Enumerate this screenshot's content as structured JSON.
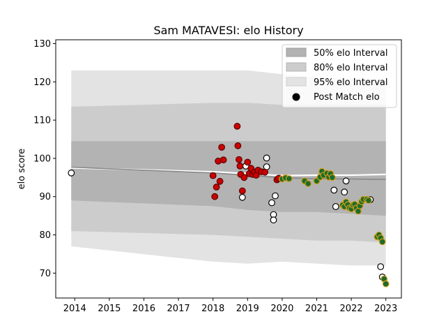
{
  "chart_data": {
    "type": "scatter",
    "title": "Sam MATAVESI: elo History",
    "xlabel": "",
    "ylabel": "elo score",
    "xlim": [
      2013.45,
      2023.45
    ],
    "ylim": [
      63.5,
      131
    ],
    "x_ticks": [
      "2014",
      "2015",
      "2016",
      "2017",
      "2018",
      "2019",
      "2020",
      "2021",
      "2022",
      "2023"
    ],
    "y_ticks": [
      "70",
      "80",
      "90",
      "100",
      "110",
      "120",
      "130"
    ],
    "grid": false,
    "legend_position": "top-right",
    "legend": [
      {
        "label": "50% elo Interval",
        "kind": "patch",
        "color": "#b3b3b3"
      },
      {
        "label": "80% elo Interval",
        "kind": "patch",
        "color": "#cccccc"
      },
      {
        "label": "95% elo Interval",
        "kind": "patch",
        "color": "#e3e3e3"
      },
      {
        "label": "Post Match elo",
        "kind": "marker",
        "color": "#000000"
      }
    ],
    "colors": {
      "band95": "#e3e3e3",
      "band80": "#cccccc",
      "band50": "#b3b3b3",
      "mean_line": "#ffffff",
      "median_line": "#888888",
      "red_fill": "#cc0000",
      "red_edge": "#5a0000",
      "green_fill": "#1f6b2a",
      "green_edge": "#d4a017",
      "white_fill": "#ffffff",
      "white_edge": "#000000"
    },
    "bands": {
      "x": [
        2013.9,
        2018.0,
        2019.0,
        2020.0,
        2021.0,
        2022.0,
        2023.0
      ],
      "p95": [
        [
          77.0,
          123.0
        ],
        [
          73.0,
          123.0
        ],
        [
          72.5,
          123.0
        ],
        [
          73.0,
          122.0
        ],
        [
          72.5,
          121.0
        ],
        [
          72.0,
          121.0
        ],
        [
          72.0,
          120.5
        ]
      ],
      "p80": [
        [
          81.0,
          113.5
        ],
        [
          80.0,
          114.5
        ],
        [
          79.5,
          114.5
        ],
        [
          79.0,
          114.0
        ],
        [
          78.5,
          114.0
        ],
        [
          78.5,
          114.0
        ],
        [
          78.0,
          114.0
        ]
      ],
      "p50": [
        [
          89.0,
          104.5
        ],
        [
          87.5,
          104.5
        ],
        [
          86.5,
          104.5
        ],
        [
          86.0,
          104.5
        ],
        [
          86.0,
          104.5
        ],
        [
          85.5,
          104.5
        ],
        [
          85.0,
          104.5
        ]
      ]
    },
    "series": [
      {
        "kind": "mean",
        "x": [
          2013.9,
          2016.0,
          2018.0,
          2019.0,
          2020.0,
          2021.0,
          2022.0,
          2023.0
        ],
        "y": [
          97.5,
          97.0,
          96.5,
          96.0,
          95.5,
          95.6,
          95.6,
          95.8
        ]
      },
      {
        "kind": "median",
        "x": [
          2013.9,
          2016.0,
          2018.0,
          2019.0,
          2020.0,
          2021.0,
          2022.0,
          2023.0
        ],
        "y": [
          97.7,
          96.9,
          96.2,
          95.6,
          94.9,
          94.7,
          94.6,
          94.5
        ]
      },
      {
        "kind": "points",
        "style": "white",
        "x": [
          2013.9,
          2018.95,
          2019.55,
          2019.55,
          2019.7,
          2019.75,
          2019.75,
          2019.8,
          2018.85,
          2021.5,
          2021.8,
          2021.85,
          2021.55,
          2022.55,
          2022.85,
          2022.9
        ],
        "y": [
          96.2,
          98.0,
          100.1,
          97.8,
          88.4,
          85.3,
          83.9,
          90.2,
          89.8,
          91.7,
          91.2,
          94.1,
          87.4,
          89.2,
          71.7,
          69.0
        ]
      },
      {
        "kind": "points",
        "style": "red",
        "x": [
          2018.0,
          2018.05,
          2018.1,
          2018.15,
          2018.2,
          2018.25,
          2018.3,
          2018.7,
          2018.72,
          2018.75,
          2018.78,
          2018.8,
          2018.85,
          2018.9,
          2019.0,
          2019.05,
          2019.1,
          2019.15,
          2019.2,
          2019.25,
          2019.3,
          2019.4,
          2019.5,
          2019.85,
          2019.9
        ],
        "y": [
          95.5,
          90.0,
          92.5,
          99.3,
          94.0,
          102.9,
          99.6,
          108.4,
          103.3,
          99.7,
          98.0,
          95.8,
          91.5,
          95.0,
          99.0,
          96.0,
          97.4,
          95.8,
          96.4,
          95.6,
          96.9,
          96.5,
          96.4,
          94.4,
          94.8
        ]
      },
      {
        "kind": "points",
        "style": "green",
        "x": [
          2020.0,
          2020.1,
          2020.2,
          2020.65,
          2020.75,
          2021.0,
          2021.1,
          2021.15,
          2021.2,
          2021.3,
          2021.35,
          2021.4,
          2021.45,
          2021.75,
          2021.8,
          2021.85,
          2021.9,
          2021.95,
          2022.0,
          2022.05,
          2022.1,
          2022.15,
          2022.2,
          2022.25,
          2022.3,
          2022.35,
          2022.45,
          2022.5,
          2022.75,
          2022.8,
          2022.85,
          2022.9,
          2022.95,
          2023.0
        ],
        "y": [
          94.6,
          94.9,
          94.7,
          94.1,
          93.4,
          94.1,
          95.1,
          96.6,
          95.6,
          96.1,
          95.1,
          96.0,
          95.0,
          87.8,
          87.4,
          88.6,
          87.9,
          87.0,
          86.8,
          87.8,
          88.0,
          87.0,
          86.2,
          87.6,
          88.7,
          89.3,
          89.3,
          89.0,
          79.5,
          80.0,
          79.2,
          78.2,
          68.5,
          67.2
        ]
      }
    ]
  }
}
